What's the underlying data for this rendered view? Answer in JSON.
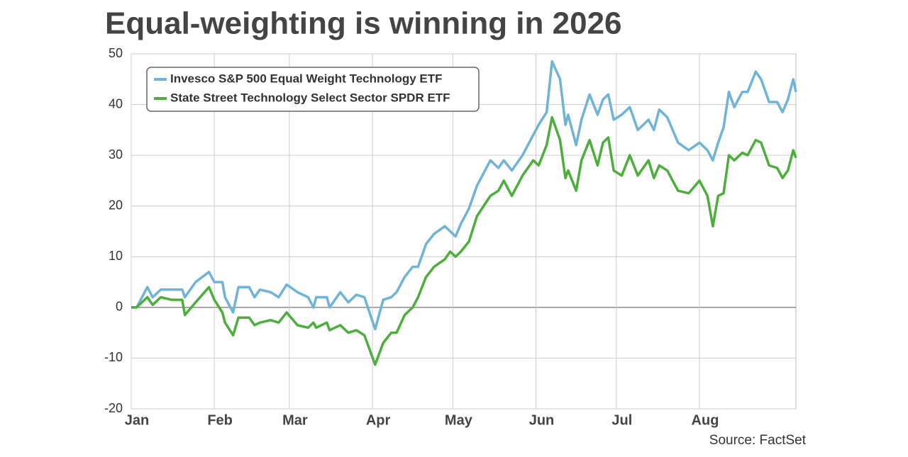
{
  "chart_data": {
    "type": "line",
    "title": "Equal-weighting is winning in 2026",
    "source": "Source: FactSet",
    "x": [
      0,
      2,
      6,
      8,
      11,
      15,
      19,
      20,
      24,
      29,
      31,
      34,
      35,
      38,
      40,
      44,
      46,
      48,
      52,
      55,
      58,
      62,
      66,
      68,
      69,
      73,
      74,
      78,
      81,
      84,
      87,
      91,
      94,
      97,
      99,
      102,
      105,
      107,
      110,
      113,
      117,
      119,
      121,
      123,
      126,
      129,
      134,
      137,
      139,
      142,
      146,
      150,
      152,
      155,
      157,
      160,
      162,
      163,
      166,
      168,
      171,
      174,
      176,
      178,
      180,
      183,
      186,
      189,
      193,
      195,
      197,
      200,
      204,
      208,
      212,
      215,
      217,
      219,
      221,
      223,
      225,
      228,
      230,
      233,
      235,
      238,
      241,
      243,
      245,
      247,
      248
    ],
    "series": [
      {
        "name": "Invesco S&P 500 Equal Weight Technology ETF",
        "color": "#6fb3d8",
        "values": [
          0,
          0,
          4,
          2,
          3.5,
          3.5,
          3.5,
          2,
          5,
          7,
          5,
          5,
          2,
          -1,
          4,
          4,
          2,
          3.5,
          3,
          2,
          4.5,
          3,
          2,
          0,
          2,
          2,
          0,
          3,
          1,
          2.5,
          2,
          -4.3,
          1.5,
          2,
          3,
          6,
          8,
          8,
          12.5,
          14.5,
          16,
          15,
          14,
          16.5,
          19.5,
          24,
          29,
          27.5,
          29,
          27,
          30,
          34,
          36,
          38.5,
          48.5,
          45,
          36,
          38,
          32,
          37,
          42,
          38,
          41,
          42,
          37,
          38,
          39.5,
          35,
          37,
          35,
          39,
          37.5,
          32.5,
          31,
          32.5,
          31,
          29,
          32.5,
          35.5,
          42.5,
          39.5,
          42.5,
          42.5,
          46.5,
          45,
          40.5,
          40.5,
          38.5,
          41,
          45,
          42.5
        ]
      },
      {
        "name": "State Street Technology Select Sector SPDR ETF",
        "color": "#4caf3c",
        "values": [
          0,
          0,
          2,
          0.5,
          2,
          1.5,
          1.5,
          -1.5,
          1,
          4,
          1.5,
          -1,
          -3,
          -5.5,
          -2,
          -2,
          -3.5,
          -3,
          -2.5,
          -3,
          -1,
          -3.5,
          -4,
          -3,
          -4,
          -3,
          -4.5,
          -3.5,
          -5,
          -4.5,
          -5.5,
          -11.3,
          -7,
          -5,
          -5,
          -1.5,
          0,
          2,
          6,
          8,
          9.5,
          11,
          10,
          11,
          13,
          18,
          22,
          23,
          25,
          22,
          26,
          29,
          28,
          32,
          37.5,
          33,
          25.5,
          27,
          23,
          29,
          33,
          28,
          32.5,
          33.5,
          27,
          26,
          30,
          26,
          29,
          25.5,
          28,
          27,
          23,
          22.5,
          25,
          22,
          16,
          22,
          22.5,
          30,
          29,
          30.5,
          30,
          33,
          32.5,
          28,
          27.5,
          25.5,
          27,
          31,
          29.5
        ]
      }
    ],
    "xlim": [
      0,
      248
    ],
    "xticks": [
      {
        "value": 0,
        "label": "Jan"
      },
      {
        "value": 31,
        "label": "Feb"
      },
      {
        "value": 59,
        "label": "Mar"
      },
      {
        "value": 90,
        "label": "Apr"
      },
      {
        "value": 120,
        "label": "May"
      },
      {
        "value": 151,
        "label": "Jun"
      },
      {
        "value": 181,
        "label": "Jul"
      },
      {
        "value": 212,
        "label": "Aug"
      }
    ],
    "ylim": [
      -20,
      50
    ],
    "yticks": [
      -20,
      -10,
      0,
      10,
      20,
      30,
      40,
      50
    ],
    "grid": true,
    "legend": "upper left"
  }
}
